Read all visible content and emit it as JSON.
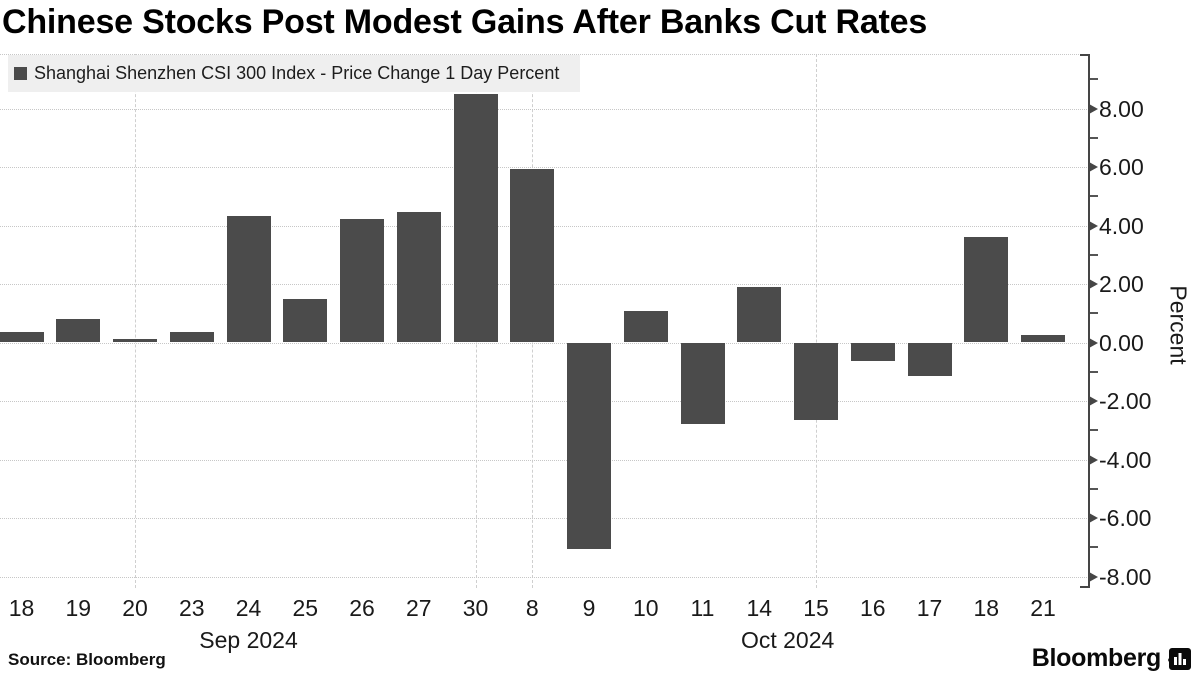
{
  "chart_data": {
    "type": "bar",
    "title": "Chinese Stocks Post Modest Gains After Banks Cut Rates",
    "series_name": "Shanghai Shenzhen CSI 300 Index - Price Change 1 Day Percent",
    "categories": [
      "18",
      "19",
      "20",
      "23",
      "24",
      "25",
      "26",
      "27",
      "30",
      "8",
      "9",
      "10",
      "11",
      "14",
      "15",
      "16",
      "17",
      "18",
      "21"
    ],
    "values": [
      0.37,
      0.79,
      0.13,
      0.37,
      4.33,
      1.48,
      4.21,
      4.47,
      8.48,
      5.93,
      -7.05,
      1.06,
      -2.77,
      1.91,
      -2.66,
      -0.63,
      -1.13,
      3.62,
      0.27
    ],
    "months": [
      {
        "label": "Sep 2024",
        "from": 0,
        "to": 8
      },
      {
        "label": "Oct 2024",
        "from": 9,
        "to": 18
      }
    ],
    "ylabel": "Percent",
    "ylim": [
      -8.5,
      9.8
    ],
    "y_ticks_major": [
      {
        "value": 8,
        "label": "8.00"
      },
      {
        "value": 6,
        "label": "6.00"
      },
      {
        "value": 4,
        "label": "4.00"
      },
      {
        "value": 2,
        "label": "2.00"
      },
      {
        "value": 0,
        "label": "0.00"
      },
      {
        "value": -2,
        "label": "-2.00"
      },
      {
        "value": -4,
        "label": "-4.00"
      },
      {
        "value": -6,
        "label": "-6.00"
      },
      {
        "value": -8,
        "label": "-8.00"
      }
    ],
    "y_ticks_minor": [
      9,
      7,
      5,
      3,
      1,
      -1,
      -3,
      -5,
      -7
    ],
    "vertical_gridline_category_indices": [
      2,
      8,
      9,
      14
    ],
    "bar_color": "#4b4b4b",
    "grid": true,
    "legend_position": "top-left",
    "axis_side": "right"
  },
  "footer": {
    "source": "Source: Bloomberg",
    "brand": "Bloomberg",
    "brand_icon": "bloomberg-terminal-icon"
  }
}
